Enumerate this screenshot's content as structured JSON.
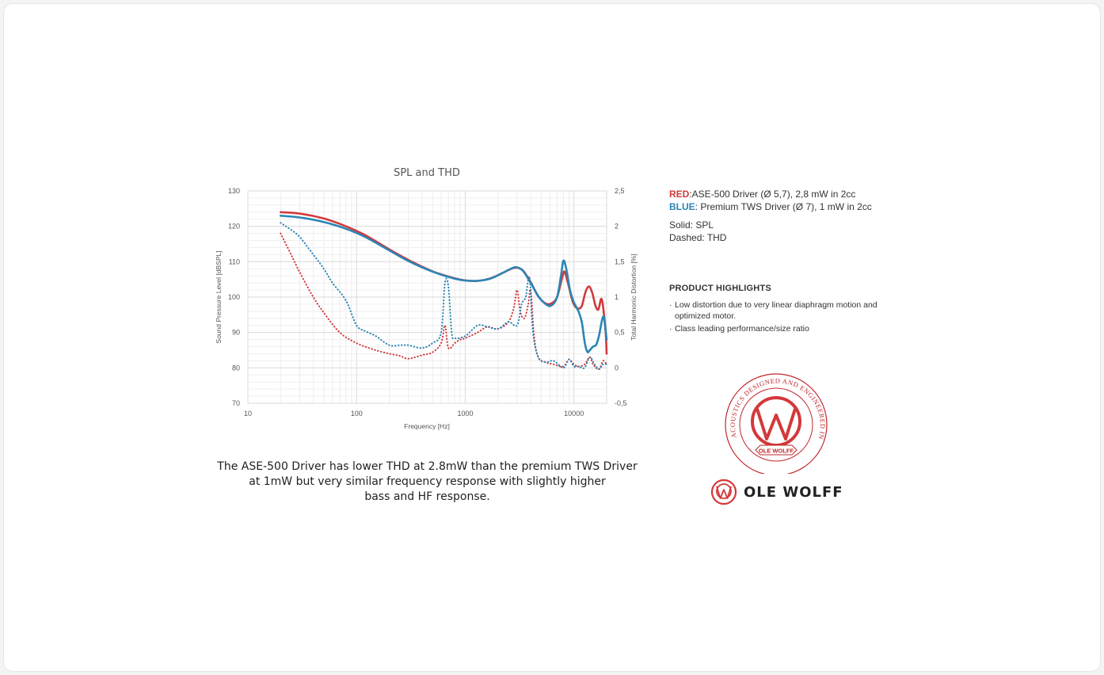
{
  "colors": {
    "red": "#d3393b",
    "blue": "#2a85b5"
  },
  "chart_data": {
    "type": "line",
    "title": "SPL and THD",
    "xlabel": "Frequency [Hz]",
    "ylabel": "Sound Pressure Level [dBSPL]",
    "y2label": "Total Harmonic Distortion [%]",
    "x_scale": "log",
    "xlim": [
      10,
      20000
    ],
    "ylim": [
      70,
      130
    ],
    "y2lim": [
      -0.5,
      2.5
    ],
    "x_ticks": [
      "10",
      "100",
      "1000",
      "10000"
    ],
    "y_ticks": [
      "70",
      "80",
      "90",
      "100",
      "110",
      "120",
      "130"
    ],
    "y2_ticks": [
      "-0,5",
      "0",
      "0,5",
      "1",
      "1,5",
      "2",
      "2,5"
    ],
    "grid": true,
    "series": [
      {
        "name": "RED SPL",
        "color": "red",
        "style": "solid",
        "axis": "left",
        "points": [
          [
            20,
            124
          ],
          [
            30,
            123.6
          ],
          [
            50,
            122.2
          ],
          [
            80,
            120
          ],
          [
            120,
            117.5
          ],
          [
            200,
            113.5
          ],
          [
            300,
            110.5
          ],
          [
            500,
            107.3
          ],
          [
            800,
            105.3
          ],
          [
            1000,
            104.7
          ],
          [
            1300,
            104.6
          ],
          [
            1700,
            105.3
          ],
          [
            2200,
            106.8
          ],
          [
            2700,
            108.1
          ],
          [
            3000,
            108.3
          ],
          [
            3400,
            107.5
          ],
          [
            4000,
            104.2
          ],
          [
            4700,
            100.2
          ],
          [
            5500,
            98.2
          ],
          [
            6200,
            98.2
          ],
          [
            7000,
            100
          ],
          [
            7800,
            105.5
          ],
          [
            8200,
            107.2
          ],
          [
            8800,
            104
          ],
          [
            9800,
            98.5
          ],
          [
            10800,
            96.8
          ],
          [
            11800,
            97.5
          ],
          [
            12800,
            101.5
          ],
          [
            13800,
            103
          ],
          [
            14800,
            101
          ],
          [
            15800,
            97.5
          ],
          [
            16800,
            96.5
          ],
          [
            17800,
            99.5
          ],
          [
            18600,
            97
          ],
          [
            19600,
            90
          ],
          [
            20000,
            84
          ]
        ]
      },
      {
        "name": "BLUE SPL",
        "color": "blue",
        "style": "solid",
        "axis": "left",
        "points": [
          [
            20,
            123
          ],
          [
            30,
            122.5
          ],
          [
            50,
            121.2
          ],
          [
            80,
            119.3
          ],
          [
            120,
            117
          ],
          [
            200,
            113.2
          ],
          [
            300,
            110.2
          ],
          [
            500,
            107.2
          ],
          [
            800,
            105.2
          ],
          [
            1000,
            104.7
          ],
          [
            1300,
            104.6
          ],
          [
            1700,
            105.2
          ],
          [
            2200,
            106.8
          ],
          [
            2700,
            108.2
          ],
          [
            3000,
            108.4
          ],
          [
            3400,
            107.4
          ],
          [
            4000,
            104
          ],
          [
            4700,
            100.3
          ],
          [
            5500,
            98
          ],
          [
            6200,
            97.6
          ],
          [
            7000,
            100
          ],
          [
            7600,
            106
          ],
          [
            8000,
            110.3
          ],
          [
            8500,
            108
          ],
          [
            9200,
            102
          ],
          [
            10000,
            98.5
          ],
          [
            11000,
            96
          ],
          [
            11800,
            93
          ],
          [
            12600,
            87
          ],
          [
            13300,
            84.5
          ],
          [
            14000,
            85
          ],
          [
            15000,
            86
          ],
          [
            16000,
            86.5
          ],
          [
            17000,
            89
          ],
          [
            18000,
            93
          ],
          [
            18800,
            94.5
          ],
          [
            19500,
            91
          ],
          [
            20000,
            88
          ]
        ]
      },
      {
        "name": "RED THD",
        "color": "red",
        "style": "dashed",
        "axis": "right",
        "points": [
          [
            20,
            1.9
          ],
          [
            25,
            1.6
          ],
          [
            30,
            1.35
          ],
          [
            40,
            1.0
          ],
          [
            50,
            0.78
          ],
          [
            70,
            0.5
          ],
          [
            100,
            0.35
          ],
          [
            150,
            0.25
          ],
          [
            200,
            0.2
          ],
          [
            250,
            0.17
          ],
          [
            300,
            0.13
          ],
          [
            400,
            0.18
          ],
          [
            500,
            0.22
          ],
          [
            600,
            0.35
          ],
          [
            650,
            0.6
          ],
          [
            700,
            0.28
          ],
          [
            800,
            0.35
          ],
          [
            900,
            0.4
          ],
          [
            1000,
            0.42
          ],
          [
            1300,
            0.5
          ],
          [
            1600,
            0.58
          ],
          [
            2000,
            0.55
          ],
          [
            2500,
            0.65
          ],
          [
            2800,
            0.85
          ],
          [
            3000,
            1.1
          ],
          [
            3200,
            0.8
          ],
          [
            3500,
            0.7
          ],
          [
            3800,
            0.9
          ],
          [
            4000,
            1.1
          ],
          [
            4300,
            0.45
          ],
          [
            4700,
            0.15
          ],
          [
            5500,
            0.08
          ],
          [
            6500,
            0.05
          ],
          [
            8000,
            0.02
          ],
          [
            9000,
            0.12
          ],
          [
            10000,
            0.05
          ],
          [
            11000,
            0.02
          ],
          [
            12500,
            0.05
          ],
          [
            14000,
            0.15
          ],
          [
            15000,
            0.05
          ],
          [
            17000,
            -0.02
          ],
          [
            18500,
            0.1
          ],
          [
            20000,
            0.05
          ]
        ]
      },
      {
        "name": "BLUE THD",
        "color": "blue",
        "style": "dashed",
        "axis": "right",
        "points": [
          [
            20,
            2.05
          ],
          [
            25,
            1.95
          ],
          [
            30,
            1.85
          ],
          [
            40,
            1.6
          ],
          [
            50,
            1.4
          ],
          [
            60,
            1.2
          ],
          [
            80,
            0.95
          ],
          [
            100,
            0.6
          ],
          [
            120,
            0.52
          ],
          [
            150,
            0.45
          ],
          [
            200,
            0.32
          ],
          [
            250,
            0.32
          ],
          [
            300,
            0.32
          ],
          [
            400,
            0.28
          ],
          [
            500,
            0.35
          ],
          [
            600,
            0.5
          ],
          [
            650,
            1.2
          ],
          [
            700,
            1.15
          ],
          [
            750,
            0.5
          ],
          [
            800,
            0.42
          ],
          [
            1000,
            0.45
          ],
          [
            1300,
            0.6
          ],
          [
            1600,
            0.58
          ],
          [
            2000,
            0.55
          ],
          [
            2500,
            0.65
          ],
          [
            3000,
            0.6
          ],
          [
            3300,
            0.9
          ],
          [
            3600,
            1.0
          ],
          [
            3900,
            1.28
          ],
          [
            4200,
            0.5
          ],
          [
            4700,
            0.15
          ],
          [
            5500,
            0.08
          ],
          [
            6500,
            0.1
          ],
          [
            8000,
            0.0
          ],
          [
            9000,
            0.12
          ],
          [
            10000,
            0.02
          ],
          [
            11000,
            0.02
          ],
          [
            12500,
            0.0
          ],
          [
            14000,
            0.15
          ],
          [
            15500,
            0.05
          ],
          [
            17000,
            -0.02
          ],
          [
            18500,
            0.05
          ],
          [
            20000,
            0.05
          ]
        ]
      }
    ]
  },
  "caption": {
    "line1": "The ASE-500 Driver has lower THD at 2.8mW than the premium TWS Driver",
    "line2": "at 1mW but very similar frequency response with slightly higher",
    "line3": "bass and HF response."
  },
  "legend": {
    "red_key": "RED",
    "red_text": ":ASE-500 Driver (Ø 5,7), 2,8 mW in 2cc",
    "blue_key": "BLUE",
    "blue_text": ": Premium TWS Driver (Ø 7), 1 mW in 2cc",
    "solid": "Solid: SPL",
    "dashed": "Dashed: THD"
  },
  "highlights": {
    "title": "PRODUCT HIGHLIGHTS",
    "items": [
      "Low distortion due to very linear diaphragm motion and optimized motor.",
      "Class leading performance/size ratio"
    ]
  },
  "seal": {
    "arc_text": "ACOUSTICS DESIGNED AND ENGINEERED IN DENMARK",
    "ribbon": "OLE WOLFF"
  },
  "brand": {
    "name": "OLE WOLFF"
  }
}
